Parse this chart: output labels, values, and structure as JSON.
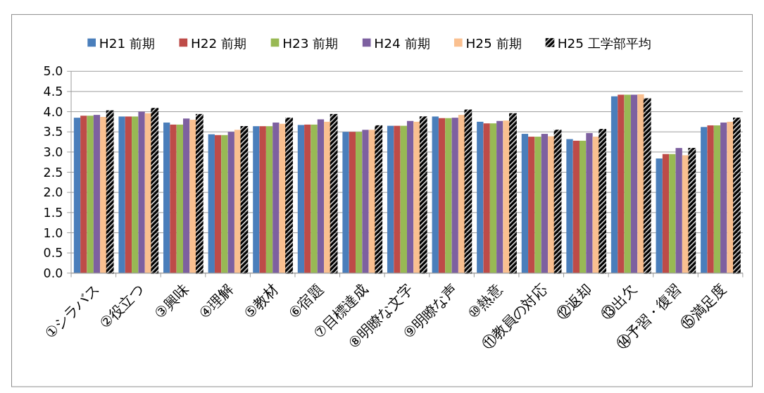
{
  "chart_data": {
    "type": "bar",
    "categories": [
      "①シラバス",
      "②役立つ",
      "③興味",
      "④理解",
      "⑤教材",
      "⑥宿題",
      "⑦目標達成",
      "⑧明瞭な文字",
      "⑨明瞭な声",
      "⑩熱意",
      "⑪教員の対応",
      "⑫返却",
      "⑬出欠",
      "⑭予習・復習",
      "⑮満足度"
    ],
    "series": [
      {
        "name": "H21 前期",
        "color": "#4a7ebb",
        "values": [
          3.85,
          3.88,
          3.73,
          3.44,
          3.64,
          3.67,
          3.5,
          3.65,
          3.88,
          3.75,
          3.45,
          3.32,
          4.38,
          2.84,
          3.62
        ]
      },
      {
        "name": "H22 前期",
        "color": "#be4b48",
        "values": [
          3.9,
          3.88,
          3.68,
          3.42,
          3.64,
          3.68,
          3.5,
          3.65,
          3.84,
          3.71,
          3.38,
          3.28,
          4.42,
          2.95,
          3.66
        ]
      },
      {
        "name": "H23 前期",
        "color": "#98b954",
        "values": [
          3.9,
          3.88,
          3.68,
          3.42,
          3.64,
          3.68,
          3.5,
          3.65,
          3.84,
          3.71,
          3.38,
          3.28,
          4.42,
          2.95,
          3.66
        ]
      },
      {
        "name": "H24 前期",
        "color": "#7d60a0",
        "values": [
          3.92,
          4.0,
          3.83,
          3.5,
          3.73,
          3.81,
          3.55,
          3.77,
          3.85,
          3.77,
          3.45,
          3.47,
          4.42,
          3.1,
          3.73
        ]
      },
      {
        "name": "H25 前期",
        "color": "#fac090",
        "values": [
          3.87,
          3.96,
          3.8,
          3.55,
          3.7,
          3.75,
          3.55,
          3.75,
          3.92,
          3.78,
          3.39,
          3.38,
          4.43,
          2.92,
          3.75
        ]
      },
      {
        "name": "H25 工学部平均",
        "color": "#000000",
        "values": [
          4.02,
          4.08,
          3.93,
          3.63,
          3.84,
          3.93,
          3.65,
          3.87,
          4.04,
          3.95,
          3.54,
          3.56,
          4.32,
          3.09,
          3.84
        ]
      }
    ],
    "ylim": [
      0,
      5
    ],
    "yticks": [
      {
        "value": 0,
        "label": "0.0"
      },
      {
        "value": 0.5,
        "label": "0.5"
      },
      {
        "value": 1,
        "label": "1.0"
      },
      {
        "value": 1.5,
        "label": "1.5"
      },
      {
        "value": 2,
        "label": "2.0"
      },
      {
        "value": 2.5,
        "label": "2.5"
      },
      {
        "value": 3,
        "label": "3.0"
      },
      {
        "value": 3.5,
        "label": "3.5"
      },
      {
        "value": 4,
        "label": "4.0"
      },
      {
        "value": 4.5,
        "label": "4.5"
      },
      {
        "value": 5,
        "label": "5.0"
      }
    ],
    "grid": "y",
    "legend": "top"
  }
}
